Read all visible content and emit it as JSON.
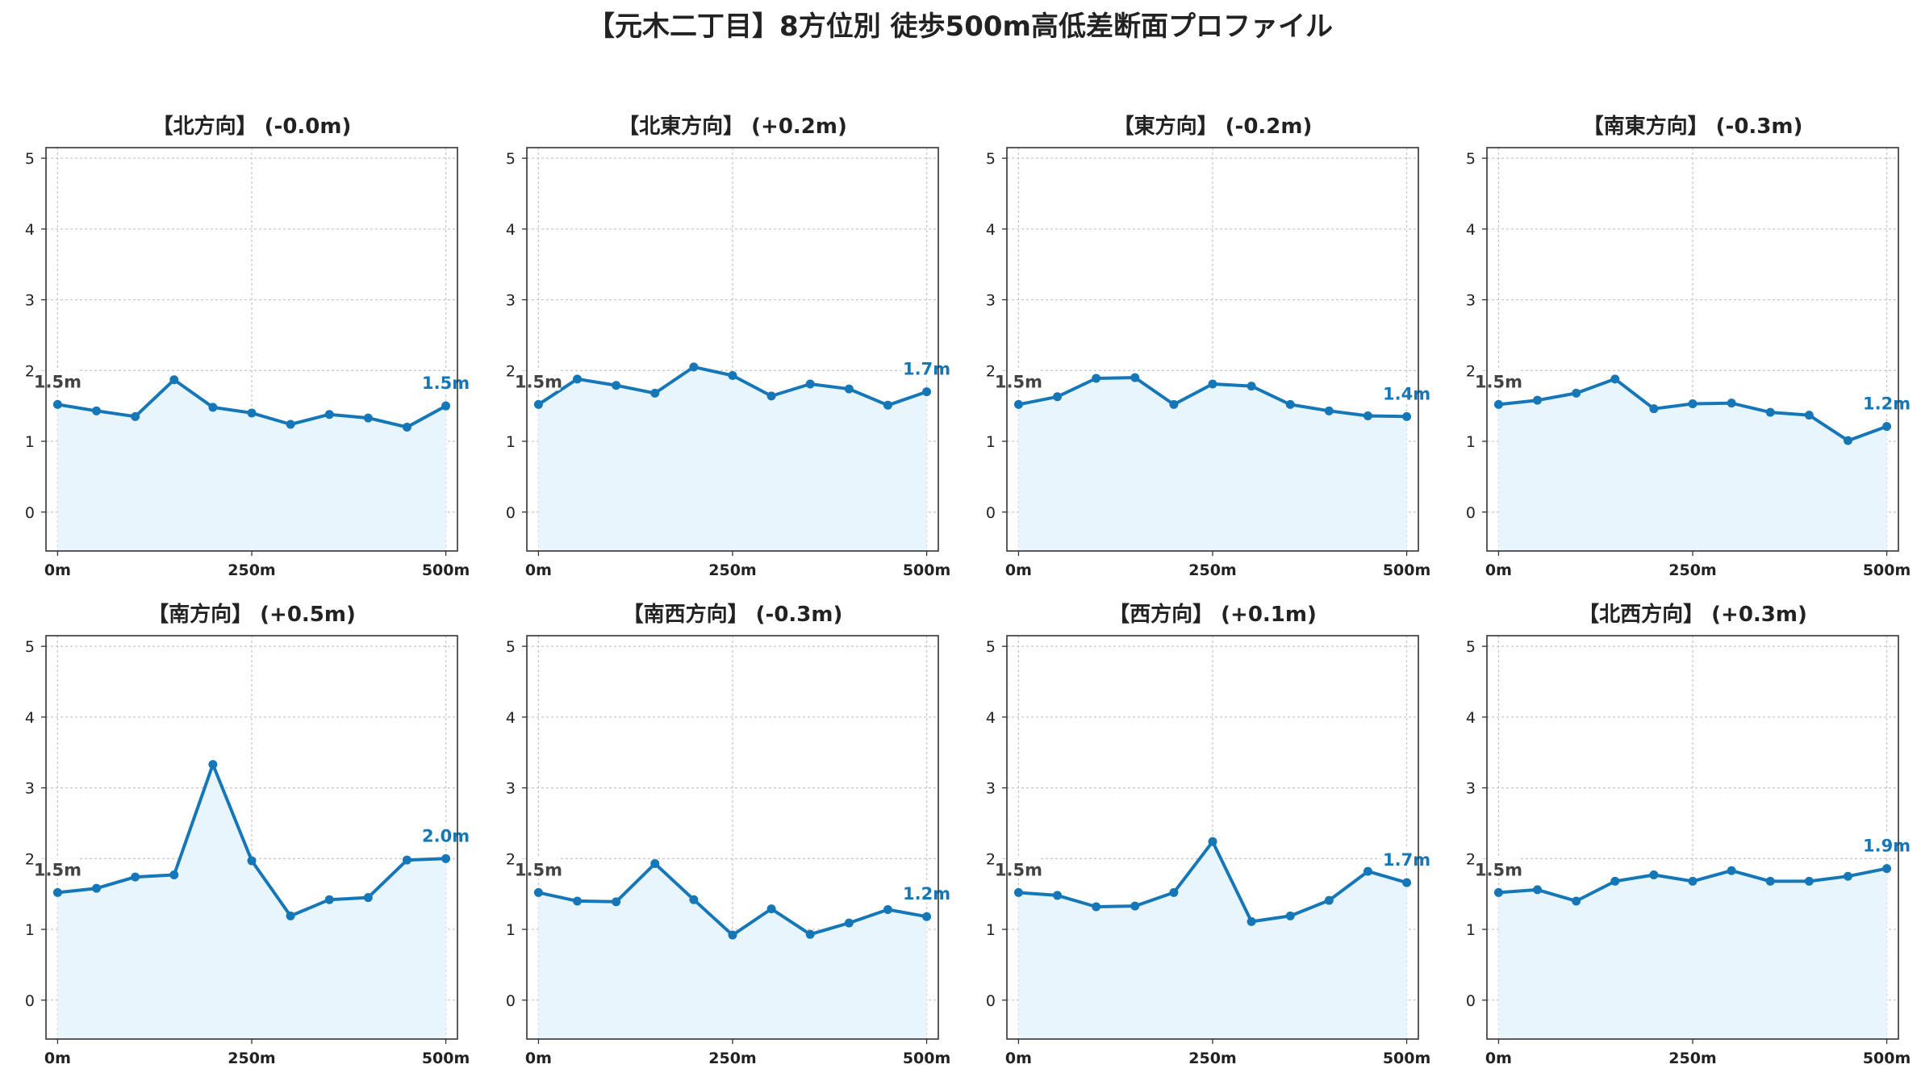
{
  "colors": {
    "line": "#1677b8",
    "fill": "#e9f5fc",
    "grid": "#c8c8c8",
    "axis": "#333333",
    "start_label": "#444444",
    "end_label": "#1677b8"
  },
  "chart_data": {
    "type": "line",
    "title": "【元木二丁目】8方位別 徒歩500m高低差断面プロファイル",
    "x": [
      0,
      50,
      100,
      150,
      200,
      250,
      300,
      350,
      400,
      450,
      500
    ],
    "xticks": [
      0,
      250,
      500
    ],
    "xtick_labels": [
      "0m",
      "250m",
      "500m"
    ],
    "xlim": [
      -15,
      515
    ],
    "yticks": [
      0,
      1,
      2,
      3,
      4,
      5
    ],
    "ytick_labels": [
      "0",
      "1",
      "2",
      "3",
      "4",
      "5"
    ],
    "ylim": [
      -0.55,
      5.15
    ],
    "grid": true,
    "panels": [
      {
        "title": "【北方向】 (-0.0m)",
        "values": [
          1.52,
          1.43,
          1.35,
          1.87,
          1.48,
          1.4,
          1.24,
          1.38,
          1.33,
          1.2,
          1.5
        ],
        "start_label": "1.5m",
        "end_label": "1.5m"
      },
      {
        "title": "【北東方向】 (+0.2m)",
        "values": [
          1.52,
          1.88,
          1.79,
          1.68,
          2.05,
          1.93,
          1.64,
          1.81,
          1.74,
          1.51,
          1.7
        ],
        "start_label": "1.5m",
        "end_label": "1.7m"
      },
      {
        "title": "【東方向】 (-0.2m)",
        "values": [
          1.52,
          1.63,
          1.89,
          1.9,
          1.52,
          1.81,
          1.78,
          1.52,
          1.43,
          1.36,
          1.35
        ],
        "start_label": "1.5m",
        "end_label": "1.4m"
      },
      {
        "title": "【南東方向】 (-0.3m)",
        "values": [
          1.52,
          1.58,
          1.68,
          1.88,
          1.46,
          1.53,
          1.54,
          1.41,
          1.37,
          1.01,
          1.21
        ],
        "start_label": "1.5m",
        "end_label": "1.2m"
      },
      {
        "title": "【南方向】 (+0.5m)",
        "values": [
          1.52,
          1.58,
          1.74,
          1.77,
          3.33,
          1.97,
          1.19,
          1.42,
          1.45,
          1.98,
          2.0
        ],
        "start_label": "1.5m",
        "end_label": "2.0m"
      },
      {
        "title": "【南西方向】 (-0.3m)",
        "values": [
          1.52,
          1.4,
          1.39,
          1.93,
          1.42,
          0.92,
          1.29,
          0.93,
          1.09,
          1.28,
          1.18
        ],
        "start_label": "1.5m",
        "end_label": "1.2m"
      },
      {
        "title": "【西方向】 (+0.1m)",
        "values": [
          1.52,
          1.48,
          1.32,
          1.33,
          1.52,
          2.24,
          1.11,
          1.19,
          1.41,
          1.82,
          1.66
        ],
        "start_label": "1.5m",
        "end_label": "1.7m"
      },
      {
        "title": "【北西方向】 (+0.3m)",
        "values": [
          1.52,
          1.56,
          1.4,
          1.68,
          1.77,
          1.68,
          1.83,
          1.68,
          1.68,
          1.75,
          1.86
        ],
        "start_label": "1.5m",
        "end_label": "1.9m"
      }
    ]
  }
}
